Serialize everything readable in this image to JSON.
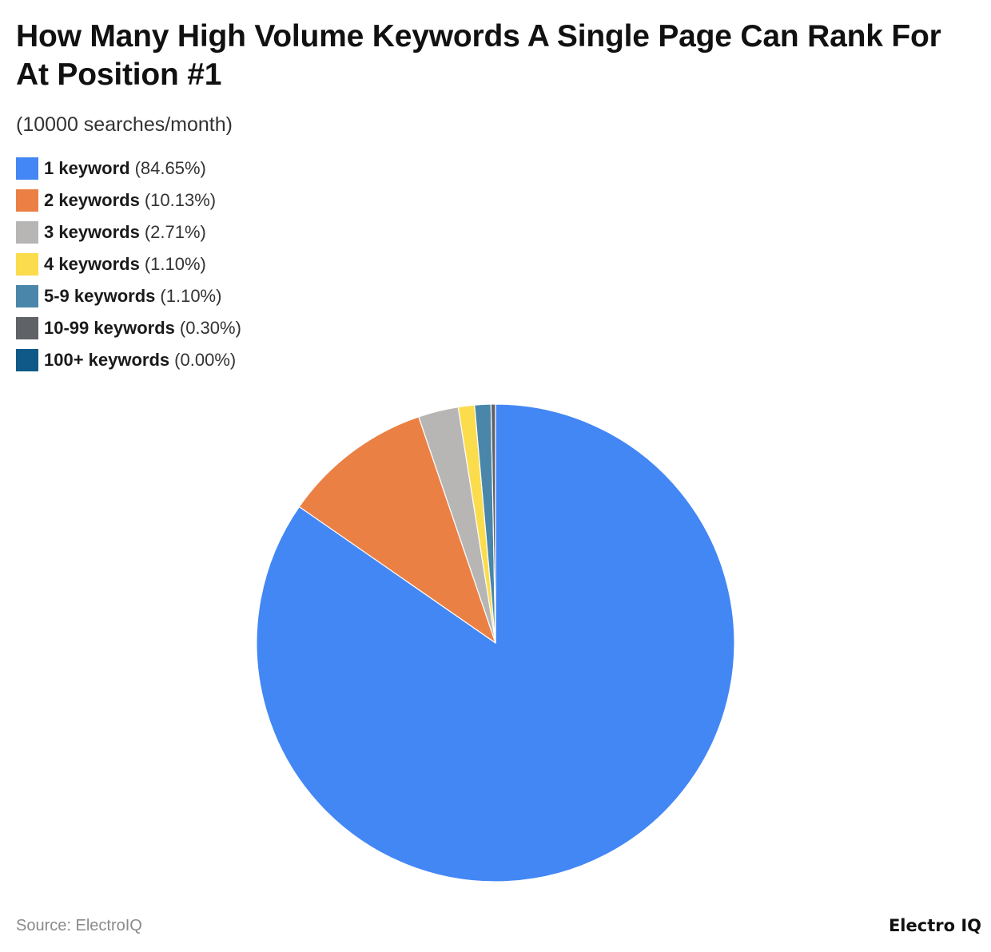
{
  "chart_data": {
    "type": "pie",
    "title": "How Many High Volume Keywords A Single Page Can Rank For At Position #1",
    "subtitle": "(10000 searches/month)",
    "legend_position": "top-left",
    "slices": [
      {
        "label": "1 keyword",
        "pct_label": "(84.65%)",
        "value": 84.65,
        "color": "#4387f5"
      },
      {
        "label": "2 keywords",
        "pct_label": "(10.13%)",
        "value": 10.13,
        "color": "#eb8045"
      },
      {
        "label": "3 keywords",
        "pct_label": "(2.71%)",
        "value": 2.71,
        "color": "#b8b6b5"
      },
      {
        "label": "4 keywords",
        "pct_label": "(1.10%)",
        "value": 1.1,
        "color": "#fbdc4c"
      },
      {
        "label": "5-9 keywords",
        "pct_label": "(1.10%)",
        "value": 1.1,
        "color": "#4a86aa"
      },
      {
        "label": "10-99 keywords",
        "pct_label": "(0.30%)",
        "value": 0.3,
        "color": "#5f6266"
      },
      {
        "label": "100+ keywords",
        "pct_label": "(0.00%)",
        "value": 0.0,
        "color": "#0f5989"
      }
    ]
  },
  "footer": {
    "source": "Source: ElectroIQ",
    "brand": "Electro IQ"
  }
}
